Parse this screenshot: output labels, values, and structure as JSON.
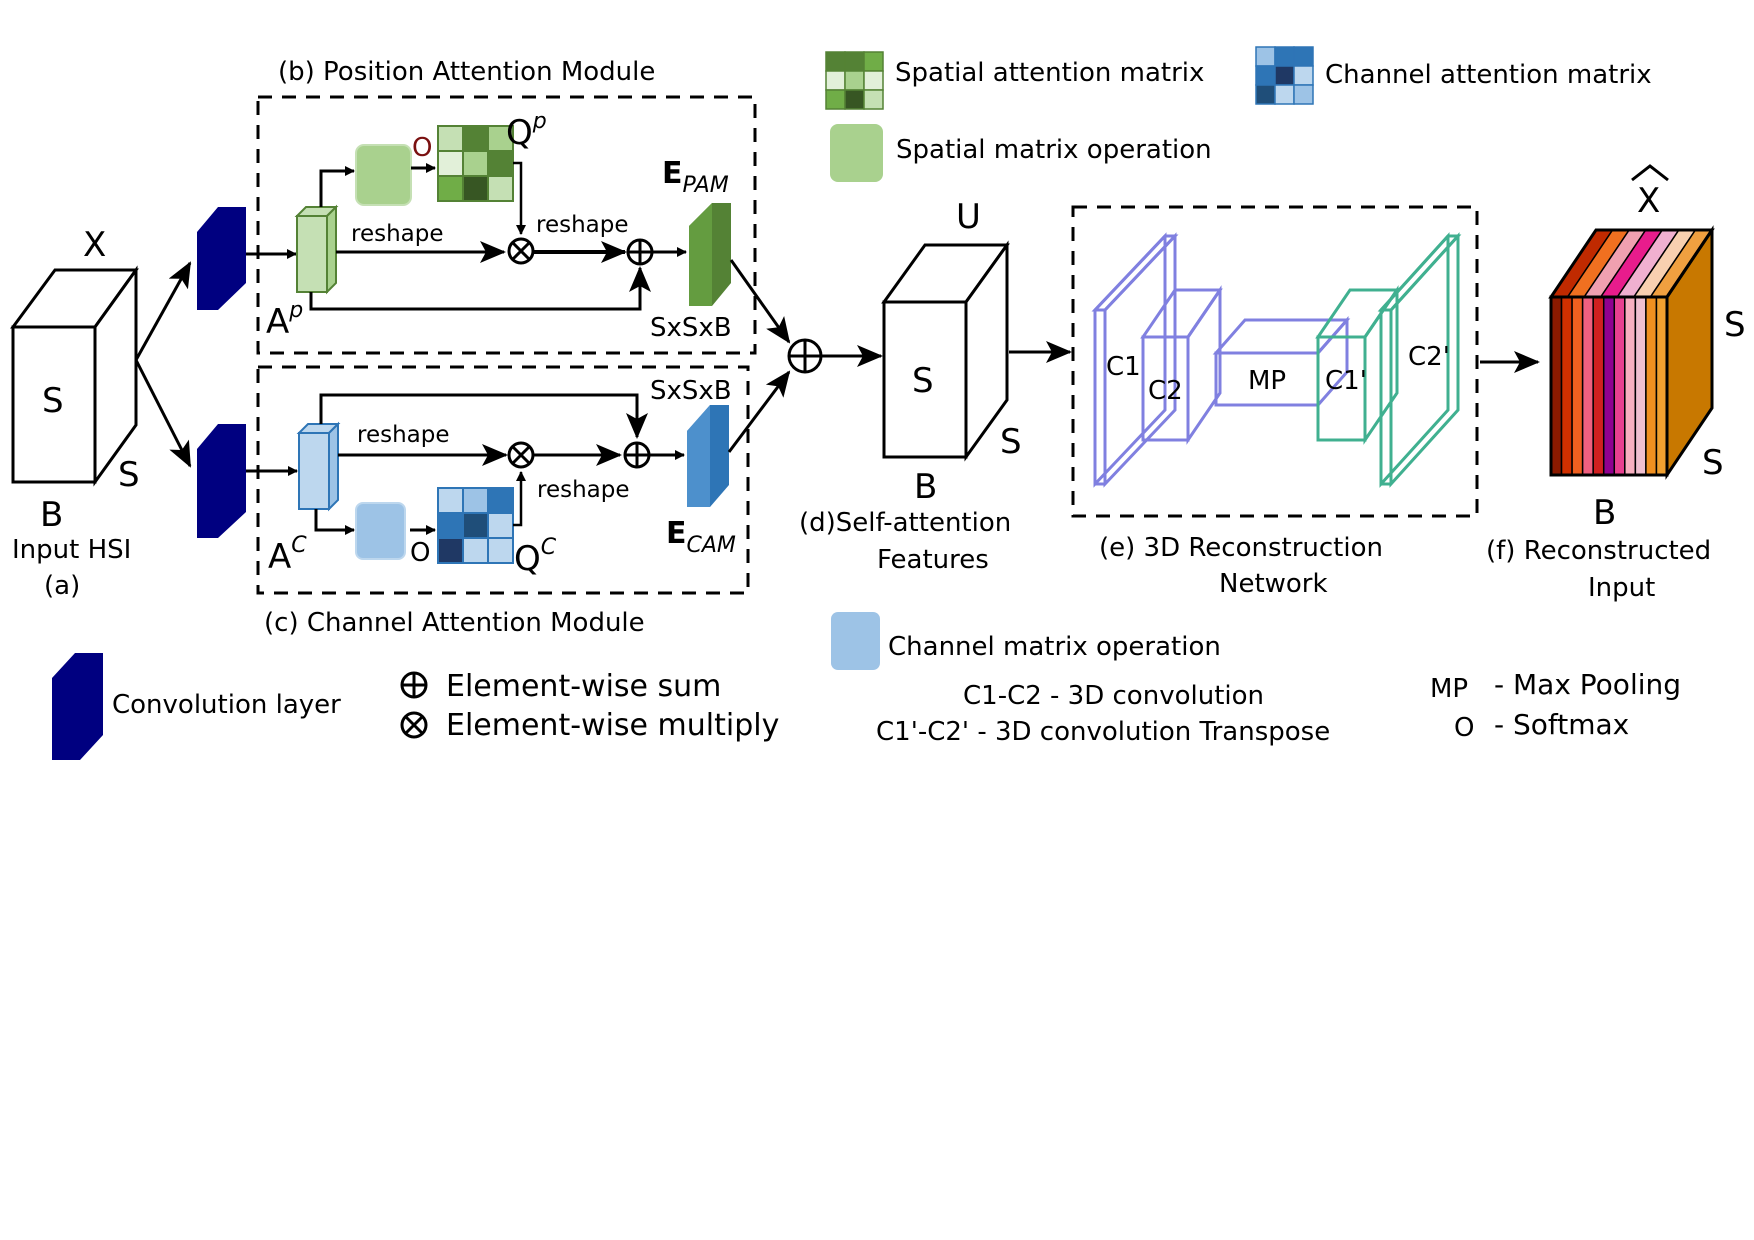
{
  "labels": {
    "pam_title": "(b) Position Attention Module",
    "cam_title": "(c) Channel Attention Module",
    "input_x": "X",
    "input_s_front": "S",
    "input_s_side": "S",
    "input_b": "B",
    "input_caption": "Input HSI",
    "input_tag": "(a)",
    "ap_base": "A",
    "ap_sup": "p",
    "ac_base": "A",
    "ac_sup": "C",
    "qp_base": "Q",
    "qp_sup": "p",
    "qc_base": "Q",
    "qc_sup": "C",
    "softmax_o_pam": "O",
    "softmax_o_cam": "O",
    "reshape_pam_1": "reshape",
    "reshape_pam_2": "reshape",
    "reshape_cam_1": "reshape",
    "reshape_cam_2": "reshape",
    "epam_base": "E",
    "epam_sub": "PAM",
    "ecam_base": "E",
    "ecam_sub": "CAM",
    "sxsxb_pam": "SxSxB",
    "sxsxb_cam": "SxSxB",
    "u_label": "U",
    "u_s_front": "S",
    "u_s_side": "S",
    "u_b": "B",
    "self_attention_1": "(d)Self-attention",
    "self_attention_2": "Features",
    "recon_net_1": "(e) 3D Reconstruction",
    "recon_net_2": "Network",
    "c1": "C1",
    "c2": "C2",
    "mp": "MP",
    "c1p": "C1'",
    "c2p": "C2'",
    "xhat": "X",
    "xhat_s_side": "S",
    "xhat_s_bottom": "S",
    "xhat_b": "B",
    "recon_input_1": "(f) Reconstructed",
    "recon_input_2": "Input"
  },
  "legend": {
    "spatial_attention_matrix": "Spatial attention matrix",
    "channel_attention_matrix": "Channel attention matrix",
    "spatial_matrix_operation": "Spatial matrix operation",
    "channel_matrix_operation": "Channel matrix operation",
    "convolution_layer": "Convolution layer",
    "elementwise_sum": "Element-wise sum",
    "elementwise_multiply": "Element-wise multiply",
    "c1c2_def": "C1-C2 - 3D convolution",
    "c1pc2p_def": "C1'-C2' - 3D convolution Transpose",
    "mp_key": "MP",
    "mp_def": "- Max Pooling",
    "o_key": "O",
    "o_def": "- Softmax"
  },
  "colors": {
    "conv_layer": "#000080",
    "green_light": "#a9d18e",
    "green_dark": "#548235",
    "blue_light": "#9dc3e6",
    "blue_dark": "#2e75b6",
    "encoder_purple": "#8080e0",
    "decoder_teal": "#40b090",
    "softmax_o": "#7a1010",
    "output_side": "#c87800",
    "output_top_stripes": [
      "#c02a00",
      "#f07020",
      "#f0a0b0",
      "#e81c8c",
      "#f0b0d0",
      "#f8d0b0",
      "#f0a040"
    ],
    "output_front_stripes": [
      "#8a1a00",
      "#d03000",
      "#f06020",
      "#f06080",
      "#d02020",
      "#900090",
      "#e84090",
      "#f8b0c0",
      "#f0c0d0",
      "#f09020",
      "#f0a030"
    ]
  }
}
